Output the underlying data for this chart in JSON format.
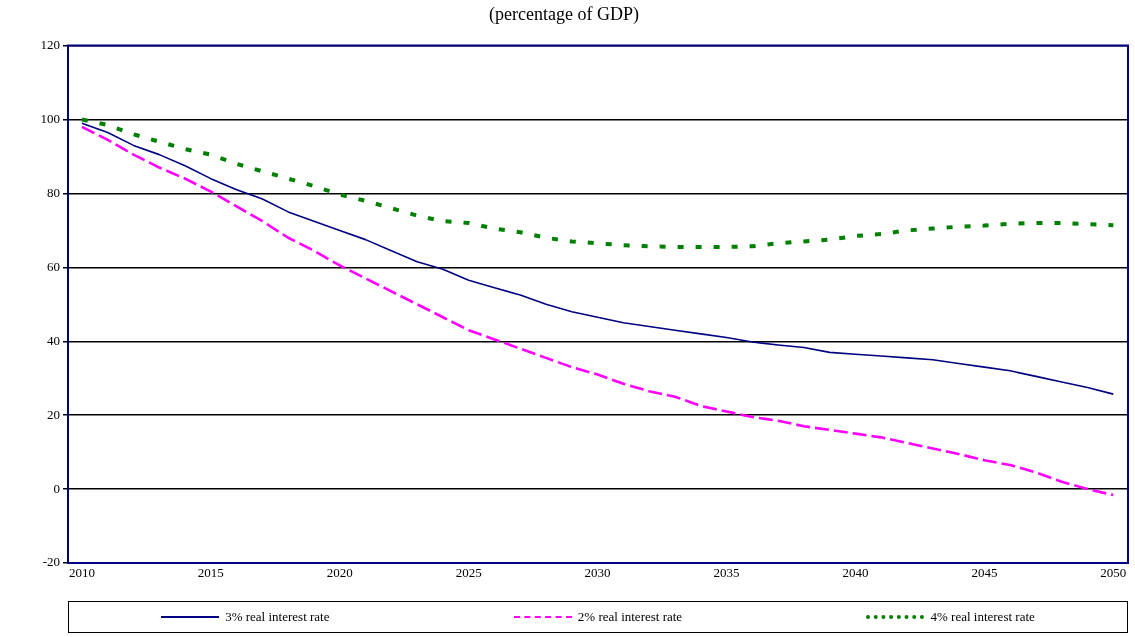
{
  "chart_data": {
    "type": "line",
    "title": "(percentage of GDP)",
    "x": [
      2010,
      2011,
      2012,
      2013,
      2014,
      2015,
      2016,
      2017,
      2018,
      2019,
      2020,
      2021,
      2022,
      2023,
      2024,
      2025,
      2026,
      2027,
      2028,
      2029,
      2030,
      2031,
      2032,
      2033,
      2034,
      2035,
      2036,
      2037,
      2038,
      2039,
      2040,
      2041,
      2042,
      2043,
      2044,
      2045,
      2046,
      2047,
      2048,
      2049,
      2050
    ],
    "series": [
      {
        "name": "3% real interest rate",
        "color": "#000080",
        "line_style": "solid",
        "values": [
          99,
          96.5,
          93,
          90.5,
          87.5,
          84,
          81,
          78.5,
          75,
          72.5,
          70,
          67.5,
          64.5,
          61.5,
          59.5,
          56.5,
          54.5,
          52.5,
          50,
          48,
          46.5,
          45,
          44,
          43,
          42,
          41,
          39.8,
          39,
          38.3,
          37,
          36.5,
          36,
          35.5,
          35,
          34,
          33,
          32,
          30.5,
          29,
          27.5,
          25.7
        ]
      },
      {
        "name": "2% real interest rate",
        "color": "#ff00ff",
        "line_style": "dashed",
        "values": [
          98,
          94.5,
          90.5,
          87,
          84,
          80.5,
          76.5,
          72.5,
          68,
          64.5,
          60.5,
          57,
          53.5,
          50,
          46.5,
          43,
          40.5,
          38,
          35.5,
          33,
          31,
          28.5,
          26.5,
          25,
          22.5,
          21,
          19.5,
          18.5,
          17,
          16,
          15,
          14,
          12.5,
          11,
          9.5,
          7.8,
          6.5,
          4.5,
          2,
          0,
          -1.6
        ]
      },
      {
        "name": "4% real interest rate",
        "color": "#008000",
        "line_style": "dotted",
        "values": [
          100,
          98.5,
          96,
          94,
          92,
          90.5,
          88,
          86,
          84,
          82,
          79.7,
          78,
          76,
          74,
          72.5,
          72,
          70.5,
          69.5,
          68,
          67,
          66.5,
          66,
          65.7,
          65.5,
          65.5,
          65.5,
          65.7,
          66.5,
          67,
          67.5,
          68.5,
          69,
          70,
          70.5,
          71,
          71.3,
          71.8,
          72,
          72,
          71.7,
          71.4
        ]
      }
    ],
    "xlim": [
      2009.46,
      2050.57
    ],
    "xticks": [
      2010,
      2015,
      2020,
      2025,
      2030,
      2035,
      2040,
      2045,
      2050
    ],
    "ylim": [
      -20,
      120
    ],
    "yticks": [
      -20,
      0,
      20,
      40,
      60,
      80,
      100,
      120
    ],
    "grid": "y",
    "legend": "bottom",
    "marker": "none"
  }
}
